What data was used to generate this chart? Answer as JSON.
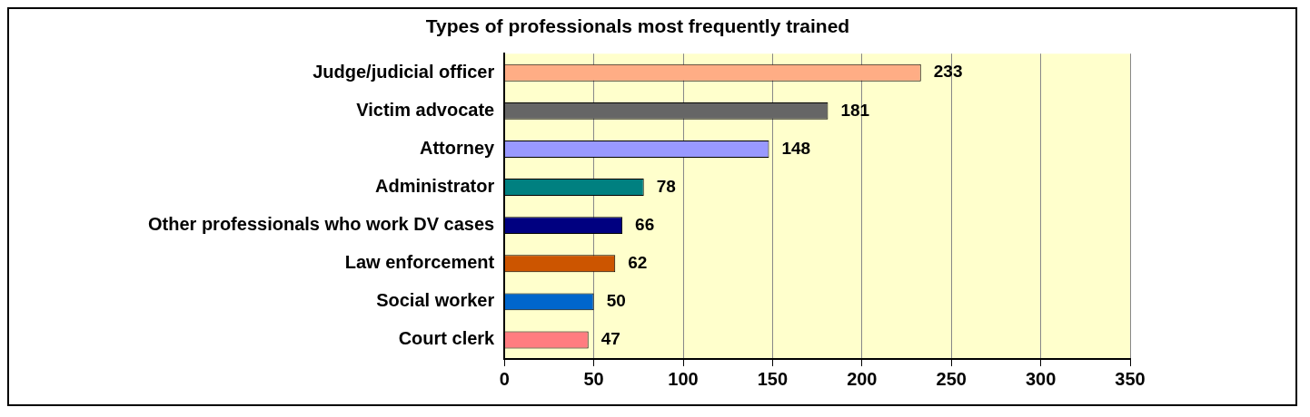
{
  "chart_data": {
    "type": "bar",
    "orientation": "horizontal",
    "title": "Types of professionals most frequently trained",
    "categories": [
      "Judge/judicial officer",
      "Victim advocate",
      "Attorney",
      "Administrator",
      "Other professionals who work DV cases",
      "Law enforcement",
      "Social worker",
      "Court clerk"
    ],
    "values": [
      233,
      181,
      148,
      78,
      66,
      62,
      50,
      47
    ],
    "colors": [
      "#ffad85",
      "#666666",
      "#9999ff",
      "#008080",
      "#000080",
      "#cc5500",
      "#0066cc",
      "#ff7c80"
    ],
    "xlim": [
      0,
      350
    ],
    "xticks": [
      0,
      50,
      100,
      150,
      200,
      250,
      300,
      350
    ],
    "grid": "x",
    "data_labels": true
  }
}
